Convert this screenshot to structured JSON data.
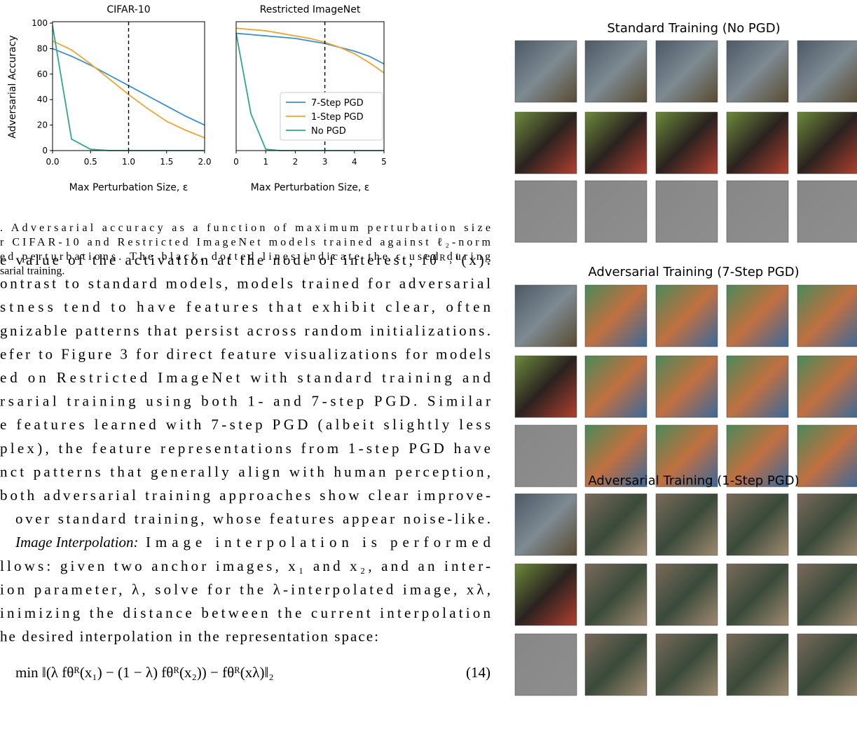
{
  "chart_data": [
    {
      "type": "line",
      "title": "CIFAR-10",
      "xlabel": "Max Perturbation Size, ε",
      "ylabel": "Adversarial Accuracy",
      "x": [
        0,
        0.25,
        0.5,
        0.75,
        1.0,
        1.25,
        1.5,
        1.75,
        2.0
      ],
      "series": [
        {
          "name": "7-Step PGD",
          "color": "#3a8fd0",
          "values": [
            80,
            74,
            67,
            59,
            51,
            43,
            35,
            27,
            20
          ]
        },
        {
          "name": "1-Step PGD",
          "color": "#f0a330",
          "values": [
            86,
            79,
            68,
            56,
            44,
            33,
            23,
            16,
            10
          ]
        },
        {
          "name": "No PGD",
          "color": "#2ea888",
          "values": [
            98,
            9,
            1,
            0,
            0,
            0,
            0,
            0,
            0
          ]
        }
      ],
      "xlim": [
        0,
        2.0
      ],
      "ylim": [
        0,
        100
      ],
      "xticks": [
        {
          "value": 0,
          "label": "0.0"
        },
        {
          "value": 0.5,
          "label": "0.5"
        },
        {
          "value": 1.0,
          "label": "1.0"
        },
        {
          "value": 1.5,
          "label": "1.5"
        },
        {
          "value": 2.0,
          "label": "2.0"
        }
      ],
      "yticks": [
        0,
        20,
        40,
        60,
        80,
        100
      ],
      "vline": 1.0
    },
    {
      "type": "line",
      "title": "Restricted ImageNet",
      "xlabel": "Max Perturbation Size, ε",
      "x": [
        0,
        0.5,
        1,
        1.5,
        2,
        2.5,
        3,
        3.5,
        4,
        4.5,
        5
      ],
      "series": [
        {
          "name": "7-Step PGD",
          "color": "#3a8fd0",
          "values": [
            92,
            91,
            90,
            89,
            88,
            86,
            84,
            81,
            78,
            74,
            68
          ]
        },
        {
          "name": "1-Step PGD",
          "color": "#f0a330",
          "values": [
            96,
            95,
            94,
            92,
            90,
            88,
            85,
            81,
            76,
            69,
            61
          ]
        },
        {
          "name": "No PGD",
          "color": "#2ea888",
          "values": [
            92,
            29,
            1,
            0,
            0,
            0,
            0,
            0,
            0,
            0,
            0
          ]
        }
      ],
      "xlim": [
        0,
        5
      ],
      "ylim": [
        0,
        100
      ],
      "xticks": [
        0,
        1,
        2,
        3,
        4,
        5
      ],
      "vline": 3,
      "legend": "lower right"
    }
  ],
  "caption": [
    ". Adversarial accuracy as a function of maximum perturbation size",
    "r CIFAR-10 and Restricted ImageNet models trained against ℓ₂-norm",
    "ed perturbations. The black, dotted lines indicate the ϵ used during",
    "sarial training."
  ],
  "body": [
    "e value of the activation at the node of interest, fθᴿ˒ⁱ(x).",
    "ontrast to standard models, models trained for adversarial",
    "stness tend to have features that exhibit clear, often",
    "gnizable patterns that persist across random initializations.",
    "efer to Figure 3 for direct feature visualizations for models",
    "ed on Restricted ImageNet with standard training and",
    "rsarial training using both 1- and 7-step PGD. Similar",
    "e features learned with 7-step PGD (albeit slightly less",
    "plex), the feature representations from 1-step PGD have",
    "nct patterns that generally align with human perception,",
    "both adversarial training approaches show clear improve-",
    "over standard training, whose features appear noise-like."
  ],
  "subsection": {
    "heading": "Image Interpolation:",
    "lines": [
      "Image interpolation is performed",
      "llows: given two anchor images, x₁ and x₂, and an inter-",
      "ion parameter, λ, solve for the λ-interpolated image, xλ,",
      "inimizing the distance between the current interpolation",
      "he desired interpolation in the representation space:"
    ]
  },
  "equation": {
    "text": "min ‖(λ fθᴿ(x₁) − (1 − λ) fθᴿ(x₂)) − fθᴿ(xλ)‖₂",
    "number": "(14)"
  },
  "grid_titles": [
    "Standard Training (No PGD)",
    "Adversarial Training (7-Step PGD)",
    "Adversarial Training (1-Step PGD)"
  ]
}
